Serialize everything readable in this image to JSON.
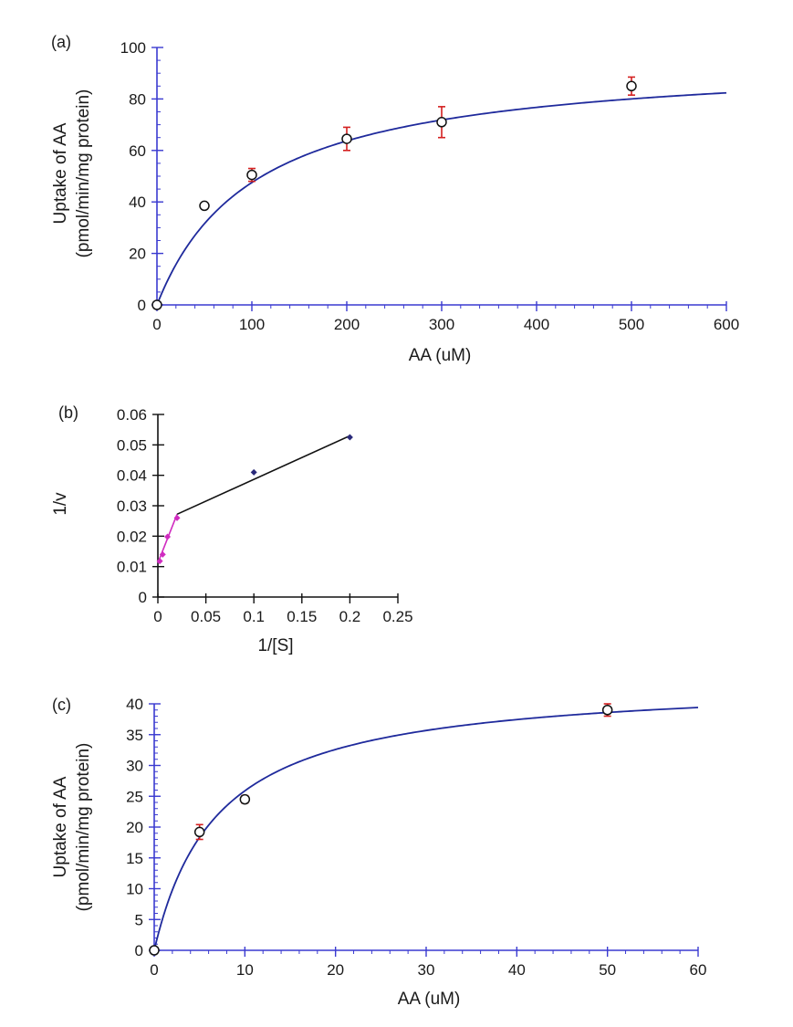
{
  "chart_data": [
    {
      "panel": "(a)",
      "type": "scatter",
      "xlabel": "AA (uM)",
      "ylabel": [
        "Uptake of AA",
        "(pmol/min/mg protein)"
      ],
      "xlim": [
        0,
        600
      ],
      "ylim": [
        0,
        100
      ],
      "xticks": [
        0,
        100,
        200,
        300,
        400,
        500,
        600
      ],
      "yticks": [
        0,
        20,
        40,
        60,
        80,
        100
      ],
      "x_minor_step": 20,
      "y_minor_step": 5,
      "points": [
        {
          "x": 0,
          "y": 0,
          "err": 0
        },
        {
          "x": 50,
          "y": 38.5,
          "err": 1.0
        },
        {
          "x": 100,
          "y": 50.5,
          "err": 2.5
        },
        {
          "x": 200,
          "y": 64.5,
          "err": 4.5
        },
        {
          "x": 300,
          "y": 71,
          "err": 6.0
        },
        {
          "x": 500,
          "y": 85,
          "err": 3.5
        }
      ],
      "fit": {
        "model": "michaelis-menten",
        "vmax": 96.5,
        "km": 103,
        "x_max": 600
      },
      "colors": {
        "axis": "#3a3ad0",
        "fit": "#1f2a9c",
        "marker": "#111111",
        "error": "#d42020"
      },
      "grid": false
    },
    {
      "panel": "(b)",
      "type": "scatter",
      "xlabel": "1/[S]",
      "ylabel": "1/v",
      "xlim": [
        0,
        0.25
      ],
      "ylim": [
        0,
        0.06
      ],
      "xticks": [
        0,
        0.05,
        0.1,
        0.15,
        0.2,
        0.25
      ],
      "yticks": [
        0,
        0.01,
        0.02,
        0.03,
        0.04,
        0.05,
        0.06
      ],
      "series": [
        {
          "points": [
            [
              0.1,
              0.041
            ],
            [
              0.2,
              0.0525
            ]
          ],
          "color": "#2a2a7a"
        },
        {
          "points": [
            [
              0.002,
              0.0118
            ],
            [
              0.005,
              0.014
            ],
            [
              0.01,
              0.0198
            ],
            [
              0.02,
              0.026
            ]
          ],
          "color": "#d02cc0"
        }
      ],
      "lines": [
        {
          "from": [
            0.02,
            0.0272
          ],
          "to": [
            0.2,
            0.053
          ],
          "color": "#111111"
        },
        {
          "from": [
            0.0,
            0.0112
          ],
          "to": [
            0.02,
            0.0272
          ],
          "color": "#d02cc0"
        }
      ],
      "colors": {
        "axis": "#111111"
      },
      "grid": false
    },
    {
      "panel": "(c)",
      "type": "scatter",
      "xlabel": "AA (uM)",
      "ylabel": [
        "Uptake of AA",
        "(pmol/min/mg protein)"
      ],
      "xlim": [
        0,
        60
      ],
      "ylim": [
        0,
        40
      ],
      "xticks": [
        0,
        10,
        20,
        30,
        40,
        50,
        60
      ],
      "yticks": [
        0,
        5,
        10,
        15,
        20,
        25,
        30,
        35,
        40
      ],
      "x_minor_step": 2,
      "y_minor_step": 1,
      "points": [
        {
          "x": 0,
          "y": 0,
          "err": 0
        },
        {
          "x": 5,
          "y": 19.2,
          "err": 1.2
        },
        {
          "x": 10,
          "y": 24.5,
          "err": 0.6
        },
        {
          "x": 50,
          "y": 39,
          "err": 1.0
        }
      ],
      "fit": {
        "model": "michaelis-menten",
        "vmax": 44,
        "km": 7,
        "x_max": 60
      },
      "colors": {
        "axis": "#3a3ad0",
        "fit": "#1f2a9c",
        "marker": "#111111",
        "error": "#d42020"
      },
      "grid": false
    }
  ]
}
